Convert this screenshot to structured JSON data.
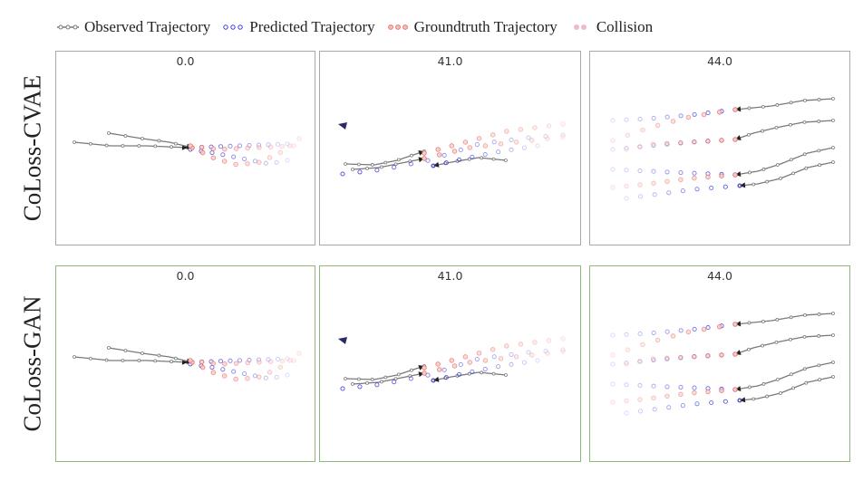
{
  "legend": {
    "observed": "Observed Trajectory",
    "predicted": "Predicted Trajectory",
    "groundtruth": "Groundtruth Trajectory",
    "collision": "Collision"
  },
  "rows": [
    {
      "label": "CoLoss-CVAE",
      "panels": [
        {
          "title": "0.0"
        },
        {
          "title": "41.0"
        },
        {
          "title": "44.0"
        }
      ]
    },
    {
      "label": "CoLoss-GAN",
      "panels": [
        {
          "title": "0.0"
        },
        {
          "title": "41.0"
        },
        {
          "title": "44.0"
        }
      ]
    }
  ],
  "colors": {
    "observed": "#7a7a7a",
    "predicted": "#3b3bdc",
    "groundtruth": "#e8746f",
    "collision": "#f2a8b8",
    "gan_border": "#8fb87a"
  }
}
